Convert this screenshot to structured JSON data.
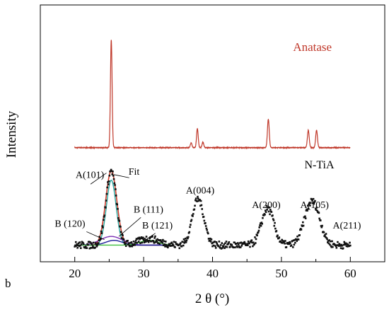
{
  "figure_letter": "b",
  "chart_data": {
    "type": "line",
    "xlabel": "2 θ (°)",
    "ylabel": "Intensity",
    "xlim": [
      15,
      65
    ],
    "xticks": [
      "20",
      "30",
      "40",
      "50",
      "60"
    ],
    "y_ticks_shown": false,
    "grid": false,
    "colors": {
      "anatase": "#c0392b",
      "nti_points": "#111111",
      "fit": "#cc3b2a",
      "anatase_fit": "#2aa7a0",
      "brookite_120": "#7a2fb4",
      "brookite_111": "#1a1a99",
      "brookite_121": "#3fbf3f"
    },
    "series": [
      {
        "name": "Anatase",
        "style": "line",
        "baseline": 0.72,
        "x_range": [
          20,
          60
        ],
        "peaks": [
          {
            "x": 25.3,
            "height": 0.68,
            "width": 0.12
          },
          {
            "x": 36.9,
            "height": 0.03,
            "width": 0.12
          },
          {
            "x": 37.8,
            "height": 0.12,
            "width": 0.12
          },
          {
            "x": 38.6,
            "height": 0.035,
            "width": 0.12
          },
          {
            "x": 48.1,
            "height": 0.18,
            "width": 0.13
          },
          {
            "x": 53.9,
            "height": 0.11,
            "width": 0.13
          },
          {
            "x": 55.1,
            "height": 0.11,
            "width": 0.13
          }
        ]
      },
      {
        "name": "N-TiA",
        "style": "points",
        "baseline": 0.105,
        "x_range": [
          20,
          60
        ],
        "peaks": [
          {
            "x": 25.3,
            "height": 0.47,
            "width": 0.75
          },
          {
            "x": 30.8,
            "height": 0.04,
            "width": 1.5
          },
          {
            "x": 37.9,
            "height": 0.29,
            "width": 0.85
          },
          {
            "x": 48.0,
            "height": 0.23,
            "width": 0.9
          },
          {
            "x": 54.2,
            "height": 0.22,
            "width": 1.0
          },
          {
            "x": 55.2,
            "height": 0.09,
            "width": 0.9
          }
        ]
      }
    ],
    "fit_components": [
      {
        "name": "Fit",
        "x": 25.3,
        "height": 0.47,
        "width": 0.8
      },
      {
        "name": "A(101)",
        "x": 25.3,
        "height": 0.41,
        "width": 0.7
      },
      {
        "name": "B (120)",
        "x": 25.3,
        "height": 0.055,
        "width": 1.6
      },
      {
        "name": "B (111)",
        "x": 25.7,
        "height": 0.03,
        "width": 1.2
      },
      {
        "name": "B (121)",
        "x": 30.8,
        "height": 0.03,
        "width": 1.3
      }
    ],
    "annotations": [
      {
        "text": "Anatase",
        "x": 54.5,
        "y": 1.33
      },
      {
        "text": "N-TiA",
        "x": 55.5,
        "y": 0.59
      },
      {
        "text": "A(101)",
        "x": 22.2,
        "y": 0.53
      },
      {
        "text": "Fit",
        "x": 28.6,
        "y": 0.55
      },
      {
        "text": "B (120)",
        "x": 19.3,
        "y": 0.22
      },
      {
        "text": "B (111)",
        "x": 30.7,
        "y": 0.31
      },
      {
        "text": "B (121)",
        "x": 32.0,
        "y": 0.21
      },
      {
        "text": "A(004)",
        "x": 38.2,
        "y": 0.43
      },
      {
        "text": "A(200)",
        "x": 47.8,
        "y": 0.34
      },
      {
        "text": "A(105)",
        "x": 54.8,
        "y": 0.34
      },
      {
        "text": "A(211)",
        "x": 59.5,
        "y": 0.21
      }
    ]
  }
}
